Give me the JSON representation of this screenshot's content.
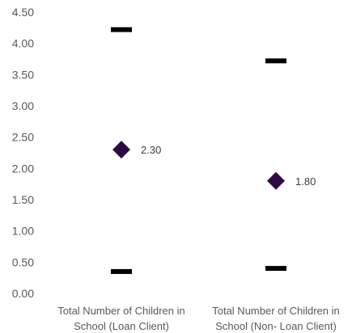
{
  "chart_data": {
    "type": "scatter",
    "title": "",
    "xlabel": "",
    "ylabel": "",
    "ylim": [
      0,
      4.5
    ],
    "yticks": [
      "0.00",
      "0.50",
      "1.00",
      "1.50",
      "2.00",
      "2.50",
      "3.00",
      "3.50",
      "4.00",
      "4.50"
    ],
    "grid": false,
    "categories": [
      [
        "Total Number of Children in",
        "School (Loan Client)"
      ],
      [
        "Total Number of Children in",
        "School (Non- Loan Client)"
      ]
    ],
    "series": [
      {
        "marker": "diamond",
        "values": [
          2.3,
          1.8
        ],
        "data_labels": [
          "2.30",
          "1.80"
        ]
      },
      {
        "marker": "dash",
        "values": [
          4.22,
          3.72
        ]
      },
      {
        "marker": "dash",
        "values": [
          0.35,
          0.4
        ]
      }
    ],
    "colors": {
      "diamond": "#2e0a45",
      "dash": "#000000",
      "text": "#595959"
    }
  }
}
